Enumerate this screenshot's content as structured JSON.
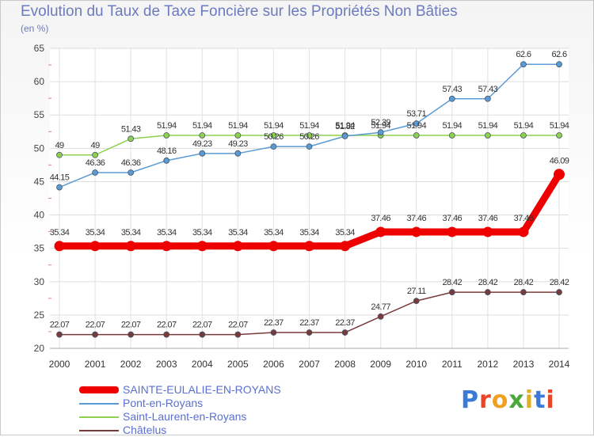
{
  "chart_data": {
    "type": "line",
    "title": "Evolution du Taux de Taxe Foncière sur les Propriétés Non Bâties",
    "ylabel": "(en %)",
    "xlabel": "",
    "x": [
      "2000",
      "2001",
      "2002",
      "2003",
      "2004",
      "2005",
      "2006",
      "2007",
      "2008",
      "2009",
      "2010",
      "2011",
      "2012",
      "2013",
      "2014"
    ],
    "ylim": [
      20,
      65
    ],
    "yticks": [
      "20",
      "25",
      "30",
      "35",
      "40",
      "45",
      "50",
      "55",
      "60",
      "65"
    ],
    "grid": true,
    "series": [
      {
        "name": "SAINTE-EULALIE-EN-ROYANS",
        "color": "#ee0000",
        "values": [
          35.34,
          35.34,
          35.34,
          35.34,
          35.34,
          35.34,
          35.34,
          35.34,
          35.34,
          37.46,
          37.46,
          37.46,
          37.46,
          37.46,
          46.09
        ],
        "labels": [
          "35.34",
          "35.34",
          "35.34",
          "35.34",
          "35.34",
          "35.34",
          "35.34",
          "35.34",
          "35.34",
          "37.46",
          "37.46",
          "37.46",
          "37.46",
          "37.46",
          "46.09"
        ]
      },
      {
        "name": "Pont-en-Royans",
        "color": "#5b9bd5",
        "values": [
          44.15,
          46.36,
          46.36,
          48.16,
          49.23,
          49.23,
          50.26,
          50.26,
          51.82,
          52.39,
          53.71,
          57.43,
          57.43,
          62.6,
          62.6
        ],
        "labels": [
          "44.15",
          "46.36",
          "46.36",
          "48.16",
          "49.23",
          "49.23",
          "50.26",
          "50.26",
          "51.82",
          "52.39",
          "53.71",
          "57.43",
          "57.43",
          "62.6",
          "62.6"
        ]
      },
      {
        "name": "Saint-Laurent-en-Royans",
        "color": "#8fd14f",
        "values": [
          49,
          49,
          51.43,
          51.94,
          51.94,
          51.94,
          51.94,
          51.94,
          51.94,
          51.94,
          51.94,
          51.94,
          51.94,
          51.94,
          51.94
        ],
        "labels": [
          "49",
          "49",
          "51.43",
          "51.94",
          "51.94",
          "51.94",
          "51.94",
          "51.94",
          "51.94",
          "51.94",
          "51.94",
          "51.94",
          "51.94",
          "51.94",
          "51.94"
        ]
      },
      {
        "name": "Châtelus",
        "color": "#7a3a3a",
        "values": [
          22.07,
          22.07,
          22.07,
          22.07,
          22.07,
          22.07,
          22.37,
          22.37,
          22.37,
          24.77,
          27.11,
          28.42,
          28.42,
          28.42,
          28.42
        ],
        "labels": [
          "22.07",
          "22.07",
          "22.07",
          "22.07",
          "22.07",
          "22.07",
          "22.37",
          "22.37",
          "22.37",
          "24.77",
          "27.11",
          "28.42",
          "28.42",
          "28.42",
          "28.42"
        ]
      }
    ]
  },
  "logo": {
    "text": "Proxiti"
  }
}
